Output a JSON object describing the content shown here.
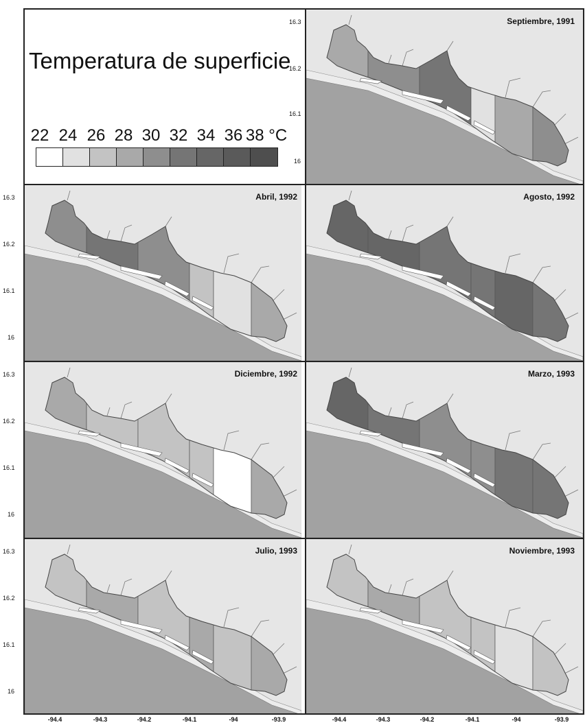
{
  "legend": {
    "title": "Temperatura de superficie",
    "labels": [
      "22",
      "24",
      "26",
      "28",
      "30",
      "32",
      "34",
      "36",
      "38 °C"
    ],
    "colors": [
      "#ffffff",
      "#e1e1e1",
      "#c3c3c3",
      "#a9a9a9",
      "#8e8e8e",
      "#757575",
      "#666666",
      "#5a5a5a",
      "#4e4e4e"
    ]
  },
  "colors": {
    "sea": "#a2a2a2",
    "land": "#e6e6e6",
    "beach": "#ececec",
    "frame": "#222222"
  },
  "axes": {
    "y_ticks": [
      "16.3",
      "16.2",
      "16.1",
      "16"
    ],
    "x_ticks": [
      "-94.4",
      "-94.3",
      "-94.2",
      "-94.1",
      "-94",
      "-93.9"
    ],
    "y_range": [
      15.97,
      16.32
    ],
    "x_range": [
      -94.45,
      -93.84
    ]
  },
  "panels": [
    {
      "title": "Septiembre, 1991",
      "zones": [
        3,
        4,
        5,
        1,
        3,
        4
      ]
    },
    {
      "title": "Abril, 1992",
      "zones": [
        4,
        5,
        4,
        2,
        1,
        3
      ]
    },
    {
      "title": "Agosto, 1992",
      "zones": [
        6,
        6,
        5,
        5,
        6,
        5
      ]
    },
    {
      "title": "Diciembre, 1992",
      "zones": [
        3,
        2,
        2,
        2,
        0,
        3
      ]
    },
    {
      "title": "Marzo, 1993",
      "zones": [
        6,
        5,
        4,
        4,
        5,
        5
      ]
    },
    {
      "title": "Julio, 1993",
      "zones": [
        2,
        3,
        2,
        3,
        2,
        3
      ]
    },
    {
      "title": "Noviembre, 1993",
      "zones": [
        2,
        3,
        2,
        2,
        1,
        2
      ]
    }
  ]
}
